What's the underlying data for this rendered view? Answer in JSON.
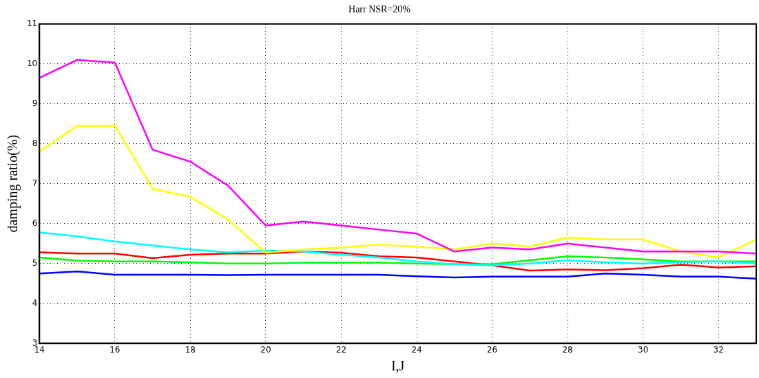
{
  "chart_data": {
    "type": "line",
    "title": "Harr NSR=20%",
    "xlabel": "I,J",
    "ylabel": "damping ratio(%)",
    "x": [
      14,
      15,
      16,
      17,
      18,
      19,
      20,
      21,
      22,
      23,
      24,
      25,
      26,
      27,
      28,
      29,
      30,
      31,
      32,
      33
    ],
    "series": [
      {
        "color": "#ff00ff",
        "values": [
          9.65,
          10.1,
          10.03,
          7.85,
          7.55,
          6.95,
          5.95,
          6.05,
          5.95,
          5.85,
          5.75,
          5.3,
          5.4,
          5.35,
          5.5,
          5.4,
          5.3,
          5.3,
          5.3,
          5.25
        ]
      },
      {
        "color": "#ffff00",
        "values": [
          7.8,
          8.45,
          8.45,
          6.87,
          6.67,
          6.1,
          5.27,
          5.35,
          5.4,
          5.47,
          5.42,
          5.35,
          5.5,
          5.42,
          5.65,
          5.6,
          5.6,
          5.3,
          5.15,
          5.6
        ]
      },
      {
        "color": "#00ffff",
        "values": [
          5.78,
          5.68,
          5.55,
          5.45,
          5.35,
          5.28,
          5.32,
          5.3,
          5.22,
          5.15,
          5.05,
          4.98,
          4.95,
          5.0,
          5.08,
          5.03,
          5.0,
          5.03,
          5.05,
          5.0
        ]
      },
      {
        "color": "#00ff00",
        "values": [
          5.15,
          5.07,
          5.05,
          5.05,
          5.03,
          5.0,
          5.0,
          5.02,
          5.02,
          5.02,
          5.0,
          4.98,
          4.98,
          5.08,
          5.18,
          5.15,
          5.1,
          5.05,
          5.05,
          5.05
        ]
      },
      {
        "color": "#ff0000",
        "values": [
          5.28,
          5.25,
          5.25,
          5.13,
          5.22,
          5.25,
          5.25,
          5.3,
          5.27,
          5.18,
          5.15,
          5.05,
          4.95,
          4.82,
          4.85,
          4.83,
          4.88,
          4.97,
          4.9,
          4.93
        ]
      },
      {
        "color": "#0000ff",
        "values": [
          4.75,
          4.8,
          4.72,
          4.72,
          4.72,
          4.71,
          4.72,
          4.72,
          4.72,
          4.72,
          4.68,
          4.65,
          4.67,
          4.67,
          4.67,
          4.75,
          4.72,
          4.67,
          4.67,
          4.62
        ]
      }
    ],
    "xlim": [
      14,
      33
    ],
    "xticks": [
      14,
      16,
      18,
      20,
      22,
      24,
      26,
      28,
      30,
      32
    ],
    "ylim": [
      3,
      11
    ],
    "yticks": [
      3,
      4,
      5,
      6,
      7,
      8,
      9,
      10,
      11
    ],
    "grid": true,
    "legend": false,
    "marker": "none",
    "line_style": "solid"
  }
}
